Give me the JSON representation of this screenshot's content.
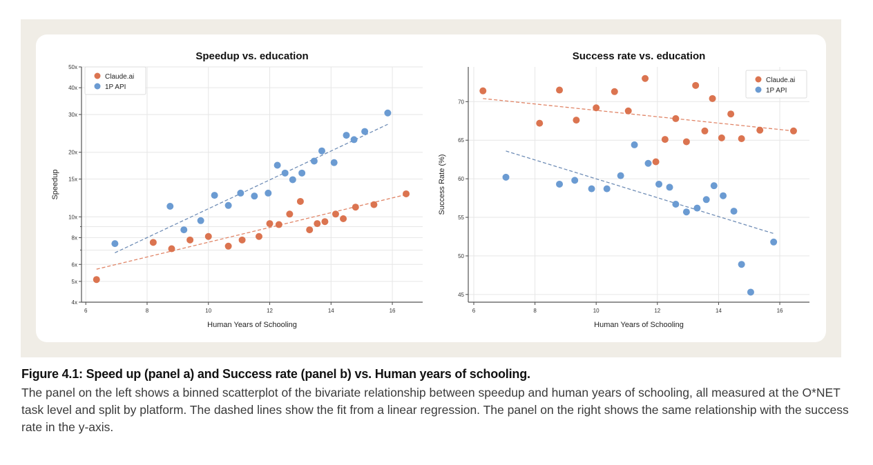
{
  "colors": {
    "claude": "#db7450",
    "api": "#6b9bd2",
    "claude_fit": "#e08466",
    "api_fit": "#6f8db6",
    "grid": "#e6e6e6"
  },
  "caption": {
    "title": "Figure 4.1: Speed up (panel a) and Success rate (panel b) vs. Human years of schooling.",
    "body": "The panel on the left shows a binned scatterplot of the bivariate relationship between speedup and human years of schooling, all measured at the O*NET task level and split by platform. The dashed lines show the fit from a linear regression. The panel on the right shows the same relationship with the success rate in the y-axis."
  },
  "chart_data": [
    {
      "type": "scatter",
      "title": "Speedup vs. education",
      "xlabel": "Human Years of Schooling",
      "ylabel": "Speedup",
      "yscale": "log",
      "xlim": [
        5.86,
        16.99
      ],
      "ylim": [
        4,
        50
      ],
      "xticks": [
        6,
        8,
        10,
        12,
        14,
        16
      ],
      "xtick_labels": [
        "6",
        "8",
        "10",
        "12",
        "14",
        "16"
      ],
      "yticks": [
        4,
        5,
        6,
        8,
        10,
        15,
        20,
        30,
        40,
        50
      ],
      "ytick_labels": [
        "4x",
        "5x",
        "6x",
        "8x",
        "10x",
        "15x",
        "20x",
        "30x",
        "40x",
        "50x"
      ],
      "minor_gridlines": [
        7,
        9
      ],
      "grid": true,
      "legend": {
        "placement": "top-left",
        "entries": [
          "Claude.ai",
          "1P API"
        ]
      },
      "series": [
        {
          "name": "Claude.ai",
          "color_key": "claude",
          "x": [
            6.35,
            8.2,
            8.8,
            9.4,
            10.0,
            10.65,
            11.1,
            11.65,
            12.0,
            12.3,
            12.65,
            13.0,
            13.3,
            13.55,
            13.8,
            14.15,
            14.4,
            14.8,
            15.4,
            16.45
          ],
          "y": [
            5.1,
            7.6,
            7.1,
            7.8,
            8.1,
            7.3,
            7.8,
            8.1,
            9.3,
            9.2,
            10.3,
            11.8,
            8.7,
            9.3,
            9.5,
            10.3,
            9.8,
            11.1,
            11.4,
            12.8
          ],
          "fit": [
            [
              6.35,
              5.7
            ],
            [
              16.45,
              12.7
            ]
          ]
        },
        {
          "name": "1P API",
          "color_key": "api",
          "x": [
            6.95,
            8.75,
            9.2,
            9.75,
            10.2,
            10.65,
            11.05,
            11.5,
            11.95,
            12.25,
            12.5,
            12.75,
            13.05,
            13.45,
            13.7,
            14.1,
            14.5,
            14.75,
            15.1,
            15.85
          ],
          "y": [
            7.5,
            11.2,
            8.7,
            9.6,
            12.6,
            11.3,
            12.9,
            12.5,
            12.9,
            17.4,
            16.0,
            14.9,
            16.0,
            18.2,
            20.3,
            17.9,
            24.0,
            22.9,
            25.0,
            30.5
          ],
          "fit": [
            [
              6.95,
              6.8
            ],
            [
              15.85,
              27.0
            ]
          ]
        }
      ]
    },
    {
      "type": "scatter",
      "title": "Success rate vs. education",
      "xlabel": "Human Years of Schooling",
      "ylabel": "Success Rate (%)",
      "yscale": "linear",
      "xlim": [
        5.82,
        16.97
      ],
      "ylim": [
        44.0,
        74.5
      ],
      "xticks": [
        6,
        8,
        10,
        12,
        14,
        16
      ],
      "xtick_labels": [
        "6",
        "8",
        "10",
        "12",
        "14",
        "16"
      ],
      "yticks": [
        45,
        50,
        55,
        60,
        65,
        70
      ],
      "ytick_labels": [
        "45",
        "50",
        "55",
        "60",
        "65",
        "70"
      ],
      "minor_gridlines": [],
      "grid": true,
      "legend": {
        "placement": "top-right",
        "entries": [
          "Claude.ai",
          "1P API"
        ]
      },
      "series": [
        {
          "name": "Claude.ai",
          "color_key": "claude",
          "x": [
            6.3,
            8.15,
            8.8,
            9.35,
            10.0,
            10.6,
            11.05,
            11.6,
            11.95,
            12.25,
            12.6,
            12.95,
            13.25,
            13.55,
            13.8,
            14.1,
            14.4,
            14.75,
            15.35,
            16.45
          ],
          "y": [
            71.4,
            67.2,
            71.5,
            67.6,
            69.2,
            71.3,
            68.8,
            73.0,
            62.2,
            65.1,
            67.8,
            64.8,
            72.1,
            66.2,
            70.4,
            65.3,
            68.4,
            65.2,
            66.3,
            66.2
          ],
          "fit": [
            [
              6.3,
              70.4
            ],
            [
              16.45,
              66.2
            ]
          ]
        },
        {
          "name": "1P API",
          "color_key": "api",
          "x": [
            7.05,
            8.8,
            9.3,
            9.85,
            10.35,
            10.8,
            11.25,
            11.7,
            12.05,
            12.4,
            12.6,
            12.95,
            13.3,
            13.6,
            13.85,
            14.15,
            14.5,
            14.75,
            15.05,
            15.8
          ],
          "y": [
            60.2,
            59.3,
            59.8,
            58.7,
            58.7,
            60.4,
            64.4,
            62.0,
            59.3,
            58.9,
            56.7,
            55.7,
            56.2,
            57.3,
            59.1,
            57.8,
            55.8,
            48.9,
            45.3,
            51.8
          ],
          "fit": [
            [
              7.05,
              63.6
            ],
            [
              15.8,
              52.9
            ]
          ]
        }
      ]
    }
  ]
}
